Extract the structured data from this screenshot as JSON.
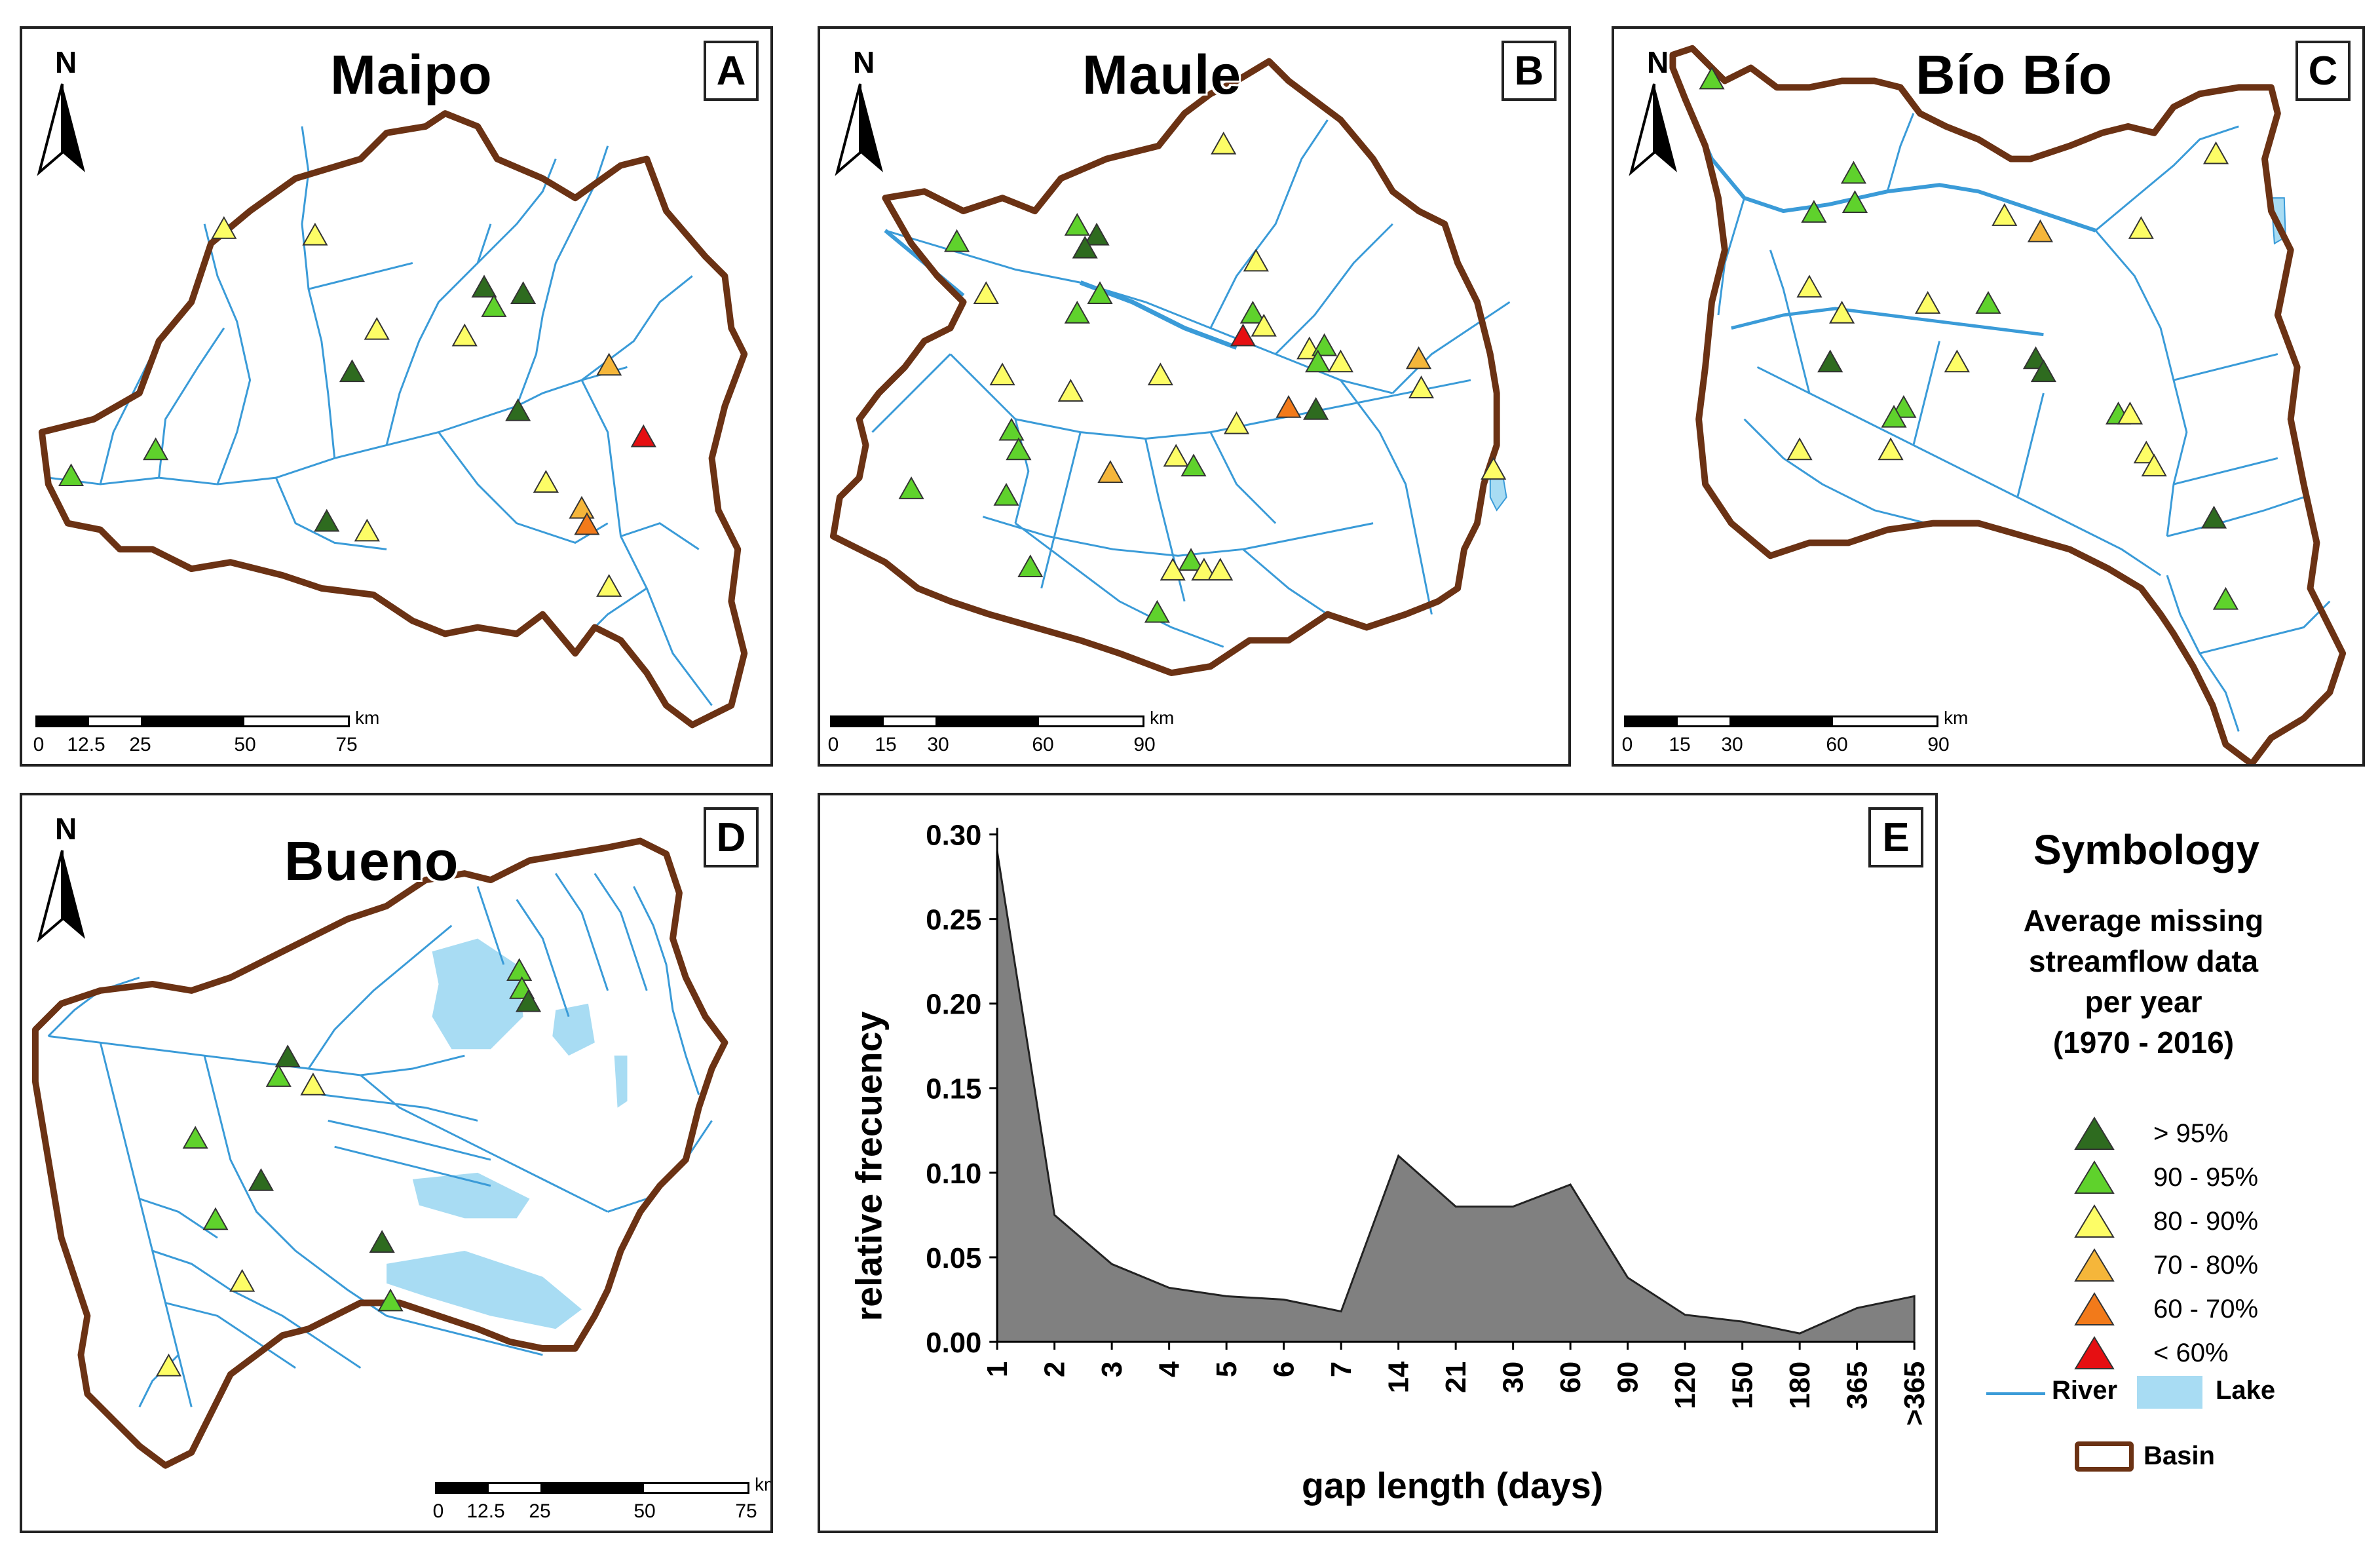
{
  "panels": {
    "A": {
      "title": "Maipo",
      "letter": "A",
      "north": "N",
      "scale_labels": [
        "0",
        "12.5",
        "25",
        "50",
        "75"
      ],
      "scale_unit": "km"
    },
    "B": {
      "title": "Maule",
      "letter": "B",
      "north": "N",
      "scale_labels": [
        "0",
        "15",
        "30",
        "60",
        "90"
      ],
      "scale_unit": "km"
    },
    "C": {
      "title": "Bío Bío",
      "letter": "C",
      "north": "N",
      "scale_labels": [
        "0",
        "15",
        "30",
        "60",
        "90"
      ],
      "scale_unit": "km"
    },
    "D": {
      "title": "Bueno",
      "letter": "D",
      "north": "N",
      "scale_labels": [
        "0",
        "12.5",
        "25",
        "50",
        "75"
      ],
      "scale_unit": "km"
    },
    "E": {
      "letter": "E"
    }
  },
  "legend": {
    "title": "Symbology",
    "subtitle_lines": [
      "Average missing",
      "streamflow data",
      "per year",
      "(1970 - 2016)"
    ],
    "classes": [
      {
        "label": "> 95%",
        "color": "#2e6b1f"
      },
      {
        "label": "90 - 95%",
        "color": "#5fd22c"
      },
      {
        "label": "80 - 90%",
        "color": "#fdfd66"
      },
      {
        "label": "70 - 80%",
        "color": "#f5b63a"
      },
      {
        "label": "60 - 70%",
        "color": "#f27a1a"
      },
      {
        "label": "< 60%",
        "color": "#e60f12"
      }
    ],
    "river_label": "River",
    "lake_label": "Lake",
    "basin_label": "Basin",
    "river_color": "#3a9bd8",
    "lake_color": "#a8dcf3",
    "basin_color": "#6b3214"
  },
  "chart_data": {
    "type": "area",
    "categories": [
      "1",
      "2",
      "3",
      "4",
      "5",
      "6",
      "7",
      "14",
      "21",
      "30",
      "60",
      "90",
      "120",
      "150",
      "180",
      "365",
      ">365"
    ],
    "values": [
      0.29,
      0.075,
      0.046,
      0.032,
      0.027,
      0.025,
      0.018,
      0.11,
      0.08,
      0.08,
      0.093,
      0.038,
      0.016,
      0.012,
      0.005,
      0.02,
      0.027
    ],
    "xlabel": "gap length (days)",
    "ylabel": "relative frecuency",
    "ylim": [
      0,
      0.3
    ],
    "yticks": [
      "0.00",
      "0.05",
      "0.10",
      "0.15",
      "0.20",
      "0.25",
      "0.30"
    ],
    "ytick_values": [
      0,
      0.05,
      0.1,
      0.15,
      0.2,
      0.25,
      0.3
    ],
    "fill_color": "#808080"
  }
}
